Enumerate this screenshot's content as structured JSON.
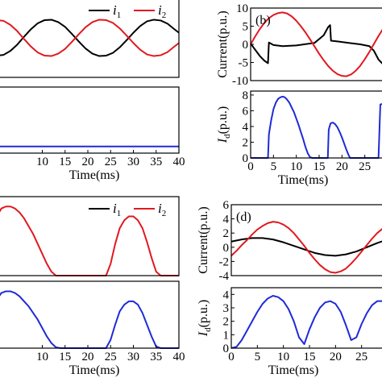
{
  "figure": {
    "colors": {
      "i1": "#000000",
      "i2": "#e0191f",
      "id": "#1f2bd6",
      "axis": "#000000"
    }
  },
  "chart_data": [
    {
      "id": "a",
      "type": "line",
      "panel_label": "",
      "top": {
        "xlim": [
          0,
          40
        ],
        "ylim": [
          -10,
          10
        ],
        "ylabel": "",
        "yticks": [],
        "yticklabels": [],
        "show_xticklabels": false,
        "legend": {
          "placement": "top-right",
          "entries": [
            {
              "letter": "i",
              "sub": "1",
              "color": "#000000"
            },
            {
              "letter": "i",
              "sub": "2",
              "color": "#e0191f"
            }
          ]
        },
        "series": [
          {
            "name": "i1",
            "color": "#000000",
            "x": [
              0,
              1.5,
              3,
              4.5,
              6,
              7.5,
              9,
              10.5,
              12,
              13.5,
              15,
              16.5,
              18,
              19.5,
              21,
              22.5,
              24,
              25.5,
              27,
              28.5,
              30,
              31.5,
              33,
              34.5,
              36,
              37.5,
              39,
              40
            ],
            "y": [
              -4.5,
              -4.3,
              -3.3,
              -1.7,
              0.3,
              2.2,
              3.7,
              4.5,
              4.6,
              4.0,
              2.8,
              1.0,
              -0.9,
              -2.7,
              -4.0,
              -4.6,
              -4.5,
              -3.8,
              -2.4,
              -0.6,
              1.3,
              3.0,
              4.2,
              4.6,
              4.4,
              3.6,
              2.2,
              1.3
            ]
          },
          {
            "name": "i2",
            "color": "#e0191f",
            "x": [
              0,
              1.5,
              3,
              4.5,
              6,
              7.5,
              9,
              10.5,
              12,
              13.5,
              15,
              16.5,
              18,
              19.5,
              21,
              22.5,
              24,
              25.5,
              27,
              28.5,
              30,
              31.5,
              33,
              34.5,
              36,
              37.5,
              39,
              40
            ],
            "y": [
              4.5,
              4.3,
              3.3,
              1.7,
              -0.3,
              -2.2,
              -3.7,
              -4.5,
              -4.6,
              -4.0,
              -2.8,
              -1.0,
              0.9,
              2.7,
              4.0,
              4.6,
              4.5,
              3.8,
              2.4,
              0.6,
              -1.3,
              -3.0,
              -4.2,
              -4.6,
              -4.4,
              -3.6,
              -2.2,
              -1.3
            ]
          }
        ]
      },
      "bottom": {
        "xlim": [
          0,
          40
        ],
        "ylim": [
          0,
          8
        ],
        "ylabel": "",
        "yticks": [],
        "yticklabels": [],
        "xlabel": "Time(ms)",
        "xticks": [
          10,
          15,
          20,
          25,
          30,
          35,
          40
        ],
        "xticklabels": [
          "10",
          "15",
          "20",
          "25",
          "30",
          "35",
          "40"
        ],
        "series": [
          {
            "name": "Id",
            "color": "#1f2bd6",
            "x": [
              0,
              40
            ],
            "y": [
              0.8,
              0.8
            ]
          }
        ]
      }
    },
    {
      "id": "b",
      "type": "line",
      "panel_label": "(b)",
      "top": {
        "xlim": [
          0,
          30
        ],
        "ylim": [
          -10,
          10
        ],
        "ylabel": "Current(p.u.)",
        "yticks": [
          -10,
          -5,
          0,
          5,
          10
        ],
        "yticklabels": [
          "-10",
          "-5",
          "0",
          "5",
          "10"
        ],
        "show_xticklabels": false,
        "series": [
          {
            "name": "i1",
            "color": "#000000",
            "x": [
              0,
              1,
              2,
              3,
              3.8,
              4.0,
              5,
              7,
              10,
              14,
              16,
              17,
              17.4,
              17.6,
              19,
              22,
              24,
              26,
              27,
              28,
              29,
              30
            ],
            "y": [
              0.2,
              -1.5,
              -3.2,
              -4.5,
              -5.2,
              0.5,
              -0.2,
              -0.5,
              -0.3,
              0.4,
              2.5,
              4.8,
              5.3,
              1.0,
              0.8,
              0.3,
              0,
              -0.5,
              -1.8,
              -4.2,
              -5.5,
              -4.0
            ]
          },
          {
            "name": "i2",
            "color": "#e0191f",
            "x": [
              0,
              1,
              2,
              3,
              4,
              5,
              6,
              7,
              8,
              9,
              10,
              11,
              12,
              13,
              14,
              15,
              16,
              17,
              18,
              19,
              20,
              21,
              22,
              23,
              24,
              25,
              26,
              27,
              28,
              29,
              30
            ],
            "y": [
              0,
              2.2,
              4.2,
              5.9,
              7.2,
              8.1,
              8.6,
              8.8,
              8.5,
              7.7,
              6.5,
              5.0,
              3.3,
              1.4,
              -0.6,
              -2.6,
              -4.4,
              -6.0,
              -7.3,
              -8.2,
              -8.7,
              -8.8,
              -8.3,
              -7.3,
              -5.9,
              -4.1,
              -2.1,
              0.1,
              2.3,
              4.3,
              6.0
            ]
          }
        ]
      },
      "bottom": {
        "xlim": [
          0,
          30
        ],
        "ylim": [
          0,
          8.5
        ],
        "ylabel": "Id(p.u.)",
        "ylabel_main": "I",
        "ylabel_sub": "d",
        "ylabel_rest": "(p.u.)",
        "yticks": [
          0,
          2,
          4,
          6,
          8
        ],
        "yticklabels": [
          "0",
          "2",
          "4",
          "6",
          "8"
        ],
        "xlabel": "Time(ms)",
        "xticks": [
          0,
          5,
          10,
          15,
          20,
          25
        ],
        "xticklabels": [
          "0",
          "5",
          "10",
          "15",
          "20",
          "25"
        ],
        "series": [
          {
            "name": "Id",
            "color": "#1f2bd6",
            "x": [
              0,
              3.8,
              4.0,
              4.5,
              5,
              5.5,
              6,
              6.5,
              7,
              7.5,
              8,
              8.5,
              9,
              9.5,
              10,
              10.5,
              11,
              11.5,
              12,
              12.5,
              13,
              13.5,
              16.9,
              17.1,
              17.5,
              18,
              18.5,
              19,
              19.5,
              20,
              20.5,
              21,
              21.5,
              21.8,
              28,
              28.4,
              30
            ],
            "y": [
              0,
              0,
              3.0,
              4.8,
              6.2,
              7.0,
              7.5,
              7.7,
              7.8,
              7.7,
              7.4,
              7.0,
              6.4,
              5.8,
              5.0,
              4.2,
              3.3,
              2.4,
              1.4,
              0.6,
              0.1,
              0,
              0,
              3.6,
              4.4,
              4.5,
              4.3,
              3.9,
              3.3,
              2.6,
              1.8,
              1.0,
              0.3,
              0,
              0,
              6.8,
              7.0
            ]
          }
        ]
      }
    },
    {
      "id": "c",
      "type": "line",
      "panel_label": "",
      "top": {
        "xlim": [
          0,
          40
        ],
        "ylim": [
          0,
          4
        ],
        "ylabel": "",
        "yticks": [],
        "yticklabels": [],
        "show_xticklabels": false,
        "legend": {
          "placement": "top-right",
          "entries": [
            {
              "letter": "i",
              "sub": "1",
              "color": "#000000"
            },
            {
              "letter": "i",
              "sub": "2",
              "color": "#e0191f"
            }
          ]
        },
        "series": [
          {
            "name": "i2",
            "color": "#e0191f",
            "x": [
              0,
              1,
              2,
              3,
              4,
              5,
              6,
              7,
              8,
              9,
              10,
              11,
              12,
              13,
              14,
              15,
              16,
              17,
              18,
              19,
              20,
              21,
              22,
              23,
              24,
              25,
              26,
              27,
              28,
              29,
              30,
              31,
              32,
              33,
              34,
              35,
              36,
              37,
              38,
              39,
              40
            ],
            "y": [
              3.0,
              3.4,
              3.5,
              3.5,
              3.4,
              3.2,
              2.9,
              2.5,
              2.1,
              1.6,
              1.1,
              0.6,
              0.2,
              0,
              0,
              0,
              0,
              0,
              0,
              0,
              0,
              0,
              0,
              0,
              0,
              0.6,
              1.6,
              2.4,
              2.8,
              3.0,
              3.0,
              2.8,
              2.4,
              1.7,
              0.9,
              0.2,
              0,
              0,
              0,
              0,
              0
            ]
          }
        ]
      },
      "bottom": {
        "xlim": [
          0,
          40
        ],
        "ylim": [
          0,
          4
        ],
        "ylabel": "",
        "yticks": [],
        "yticklabels": [],
        "xlabel": "Time(ms)",
        "xticks": [
          10,
          15,
          20,
          25,
          30,
          35,
          40
        ],
        "xticklabels": [
          "10",
          "15",
          "20",
          "25",
          "30",
          "35",
          "40"
        ],
        "series": [
          {
            "name": "Id",
            "color": "#1f2bd6",
            "x": [
              0,
              1,
              2,
              3,
              4,
              5,
              6,
              7,
              8,
              9,
              10,
              11,
              12,
              13,
              14,
              15,
              16,
              17,
              18,
              19,
              20,
              21,
              22,
              23,
              24,
              25,
              26,
              27,
              28,
              29,
              30,
              31,
              32,
              33,
              34,
              35,
              36,
              37,
              38,
              39,
              40
            ],
            "y": [
              2.9,
              3.3,
              3.4,
              3.4,
              3.3,
              3.1,
              2.8,
              2.5,
              2.1,
              1.7,
              1.2,
              0.7,
              0.3,
              0.05,
              0,
              0,
              0,
              0,
              0,
              0,
              0,
              0,
              0,
              0,
              0,
              0.5,
              1.4,
              2.2,
              2.6,
              2.8,
              2.8,
              2.6,
              2.1,
              1.4,
              0.7,
              0.1,
              0,
              0,
              0,
              0,
              0
            ]
          }
        ]
      }
    },
    {
      "id": "d",
      "type": "line",
      "panel_label": "(d)",
      "top": {
        "xlim": [
          0,
          30
        ],
        "ylim": [
          -4,
          6
        ],
        "ylabel": "Current(p.u.)",
        "yticks": [
          -4,
          -2,
          0,
          2,
          4,
          6
        ],
        "yticklabels": [
          "-4",
          "-2",
          "0",
          "2",
          "4",
          "6"
        ],
        "show_xticklabels": false,
        "series": [
          {
            "name": "i1",
            "color": "#000000",
            "x": [
              0,
              2,
              4,
              6,
              8,
              10,
              12,
              14,
              16,
              18,
              20,
              22,
              24,
              26,
              28,
              30
            ],
            "y": [
              0.8,
              1.1,
              1.3,
              1.3,
              1.1,
              0.7,
              0.2,
              -0.3,
              -0.8,
              -1.1,
              -1.2,
              -1.0,
              -0.6,
              0,
              0.6,
              1.1
            ]
          },
          {
            "name": "i2",
            "color": "#e0191f",
            "x": [
              0,
              1,
              2,
              3,
              4,
              5,
              6,
              7,
              8,
              9,
              10,
              11,
              12,
              13,
              14,
              15,
              16,
              17,
              18,
              19,
              20,
              21,
              22,
              23,
              24,
              25,
              26,
              27,
              28,
              29,
              30
            ],
            "y": [
              -1.2,
              -0.5,
              0.3,
              1.0,
              1.8,
              2.5,
              3.0,
              3.4,
              3.6,
              3.5,
              3.2,
              2.7,
              2.0,
              1.1,
              0.2,
              -0.8,
              -1.7,
              -2.5,
              -3.1,
              -3.5,
              -3.6,
              -3.4,
              -3.0,
              -2.3,
              -1.5,
              -0.6,
              0.3,
              1.2,
              2.0,
              2.6,
              3.0
            ]
          }
        ]
      },
      "bottom": {
        "xlim": [
          0,
          30
        ],
        "ylim": [
          0,
          4.5
        ],
        "ylabel": "Id(p.u.)",
        "ylabel_main": "I",
        "ylabel_sub": "d",
        "ylabel_rest": "(p.u.)",
        "yticks": [
          0,
          1,
          2,
          3,
          4
        ],
        "yticklabels": [
          "0",
          "1",
          "2",
          "3",
          "4"
        ],
        "xlabel": "Time(ms)",
        "xticks": [
          0,
          5,
          10,
          15,
          20,
          25
        ],
        "xticklabels": [
          "0",
          "5",
          "10",
          "15",
          "20",
          "25"
        ],
        "series": [
          {
            "name": "Id",
            "color": "#1f2bd6",
            "x": [
              0,
              1,
              2,
              3,
              4,
              5,
              6,
              7,
              8,
              9,
              10,
              11,
              12,
              13,
              14,
              15,
              16,
              17,
              18,
              19,
              20,
              21,
              22,
              23,
              24,
              25,
              26,
              27,
              28,
              29,
              30
            ],
            "y": [
              0,
              0.1,
              0.6,
              1.3,
              2.0,
              2.7,
              3.3,
              3.7,
              3.9,
              3.8,
              3.5,
              2.9,
              2.0,
              0.8,
              0.3,
              1.4,
              2.3,
              3.0,
              3.4,
              3.5,
              3.3,
              2.7,
              1.7,
              0.6,
              0.8,
              1.8,
              2.6,
              3.2,
              3.5,
              3.5,
              3.3
            ]
          }
        ]
      }
    }
  ]
}
